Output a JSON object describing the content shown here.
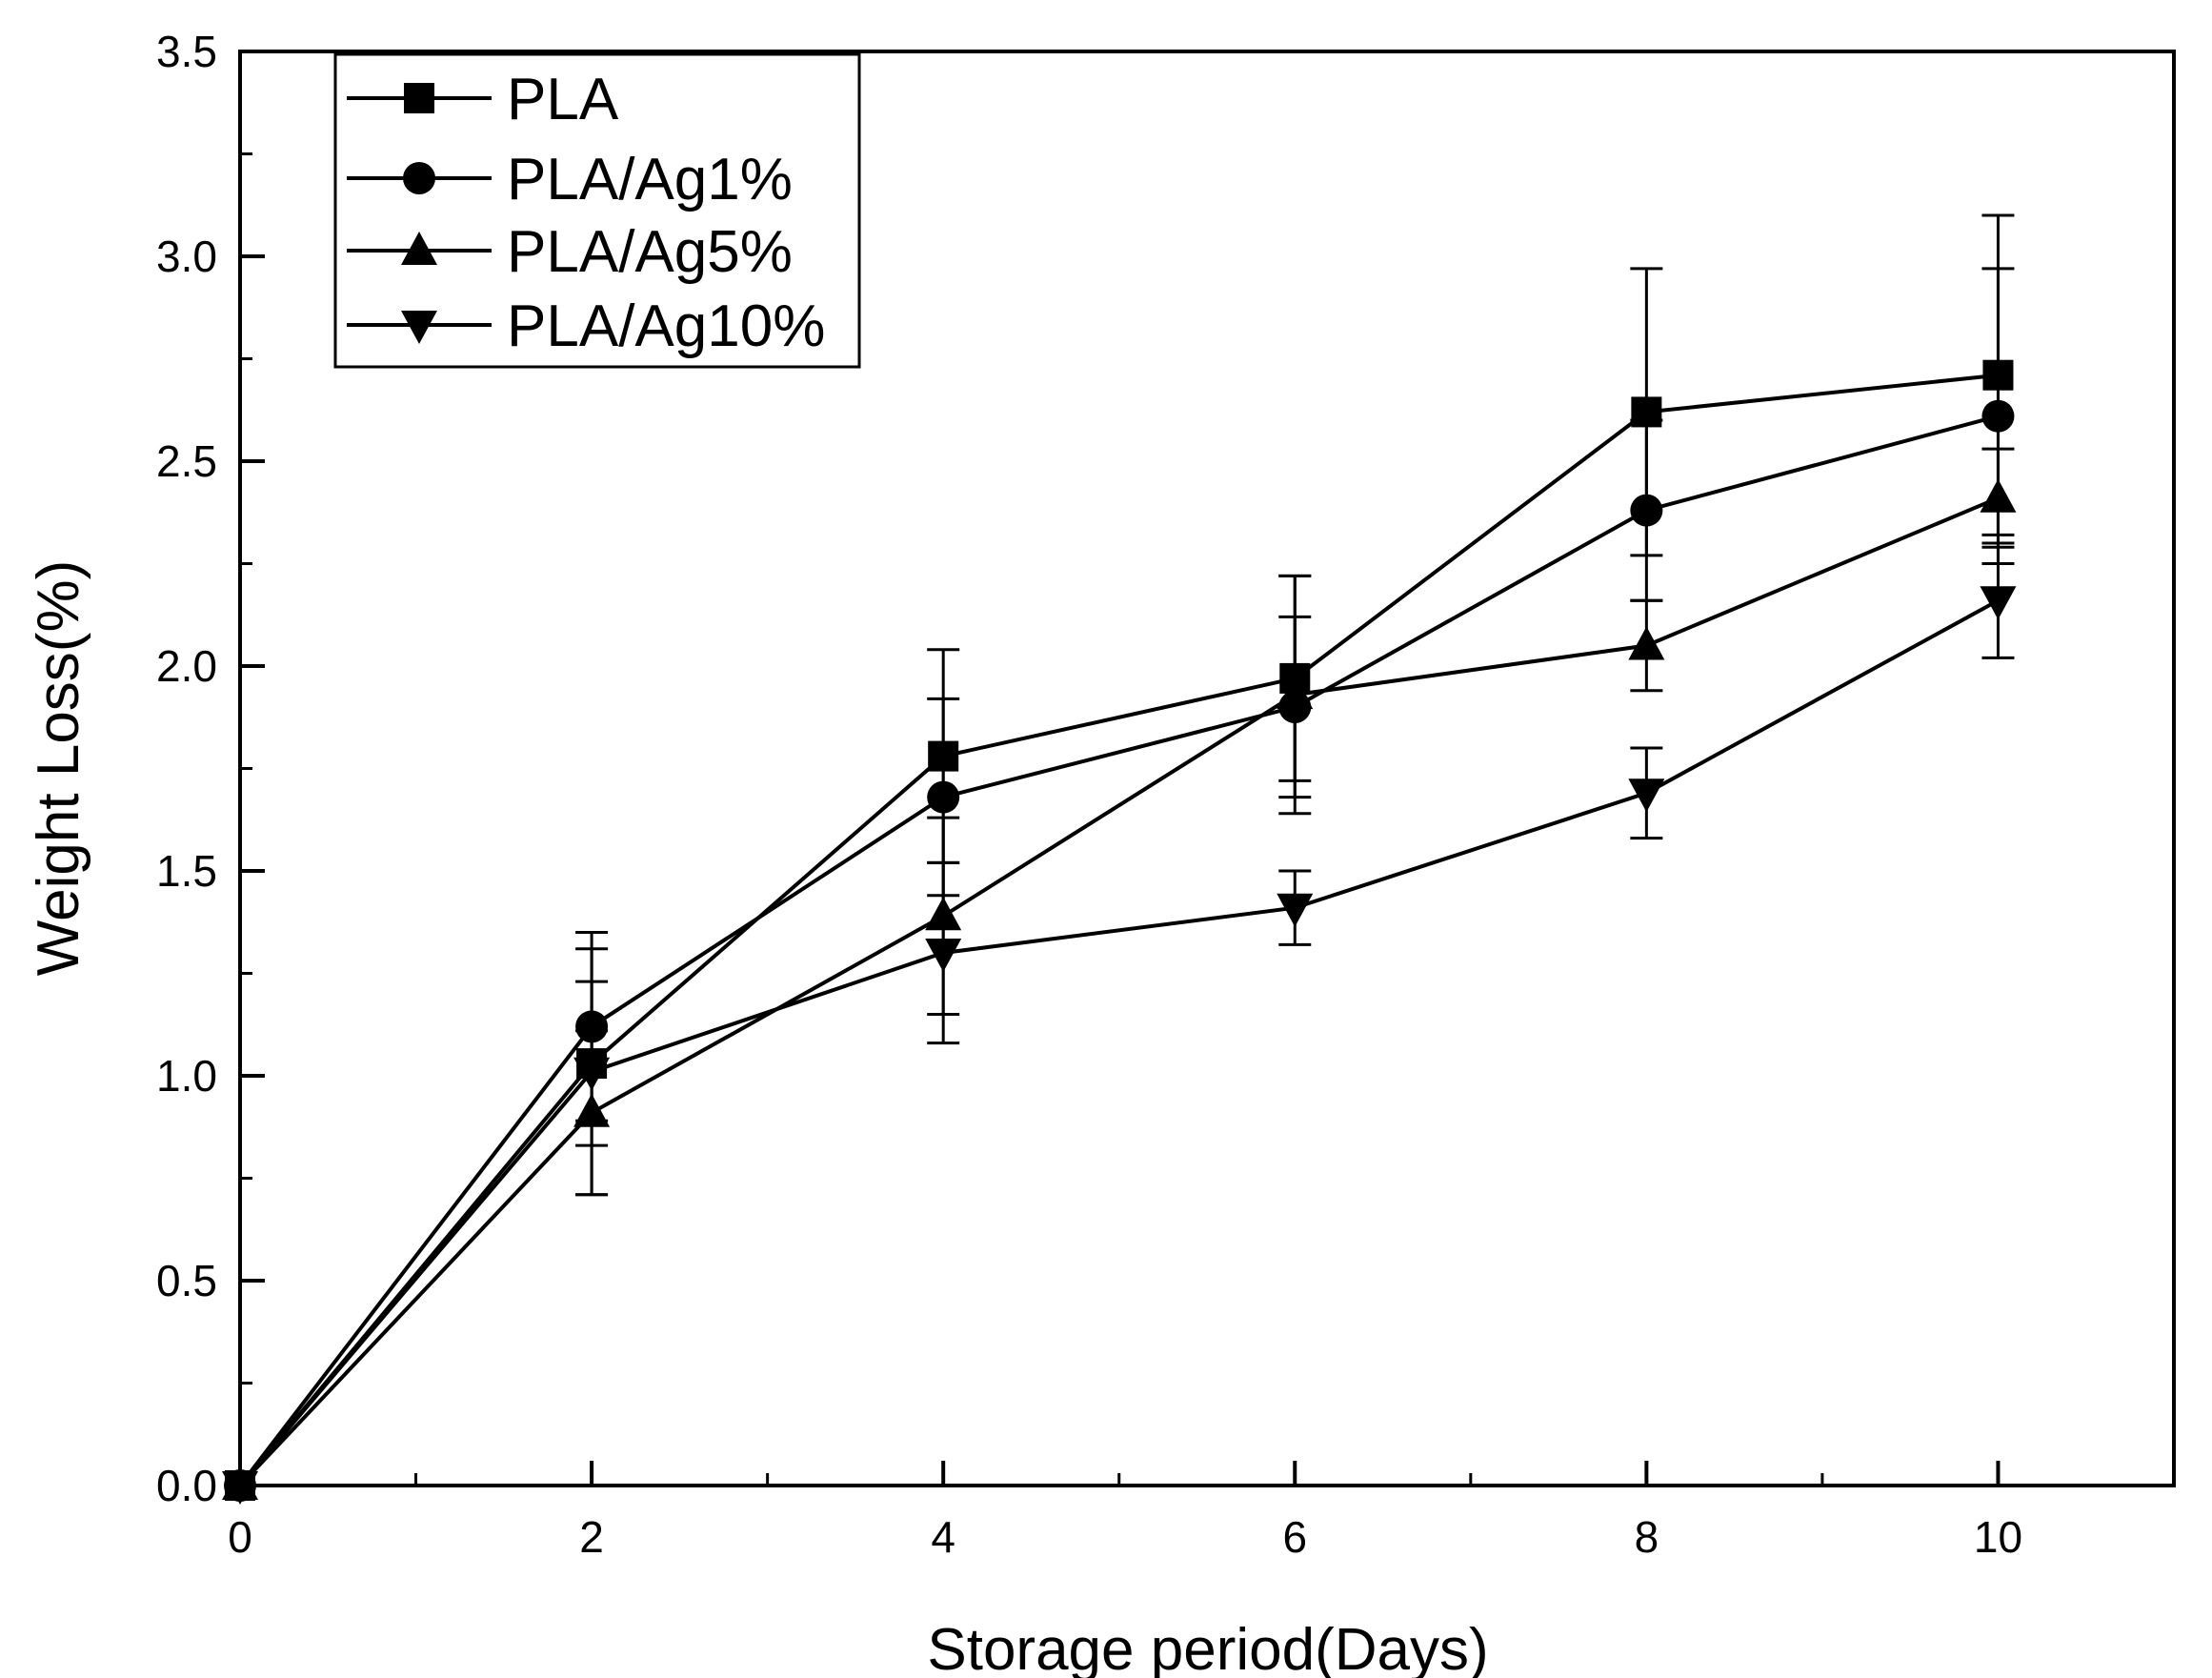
{
  "chart_data": {
    "type": "line",
    "title": "",
    "xlabel": "Storage period(Days)",
    "ylabel": "Weight Loss(%)",
    "xlim": [
      0,
      11
    ],
    "ylim": [
      0,
      3.5
    ],
    "x_ticks": [
      0,
      2,
      4,
      6,
      8,
      10
    ],
    "x_tick_labels": [
      "0",
      "2",
      "4",
      "6",
      "8",
      "10"
    ],
    "y_ticks": [
      0,
      0.5,
      1.0,
      1.5,
      2.0,
      2.5,
      3.0,
      3.5
    ],
    "y_tick_labels": [
      "0.0",
      "0.5",
      "1.0",
      "1.5",
      "2.0",
      "2.5",
      "3.0",
      "3.5"
    ],
    "grid": false,
    "legend_position": "top-left",
    "x": [
      0,
      2,
      4,
      6,
      8,
      10
    ],
    "series": [
      {
        "name": "PLA",
        "marker": "square",
        "values": [
          0,
          1.03,
          1.78,
          1.97,
          2.62,
          2.71
        ],
        "errors": [
          0,
          0.2,
          0.26,
          0.25,
          0.35,
          0.39
        ]
      },
      {
        "name": "PLA/Ag1%",
        "marker": "circle",
        "values": [
          0,
          1.12,
          1.68,
          1.9,
          2.38,
          2.61
        ],
        "errors": [
          0,
          0.23,
          0.24,
          0.22,
          0.22,
          0.36
        ]
      },
      {
        "name": "PLA/Ag5%",
        "marker": "triangle-up",
        "values": [
          0,
          0.91,
          1.39,
          1.93,
          2.05,
          2.41
        ],
        "errors": [
          0,
          0.2,
          0.24,
          0.29,
          0.11,
          0.12
        ]
      },
      {
        "name": "PLA/Ag10%",
        "marker": "triangle-down",
        "values": [
          0,
          1.01,
          1.3,
          1.41,
          1.69,
          2.16
        ],
        "errors": [
          0,
          0.3,
          0.22,
          0.09,
          0.11,
          0.14
        ]
      }
    ]
  }
}
